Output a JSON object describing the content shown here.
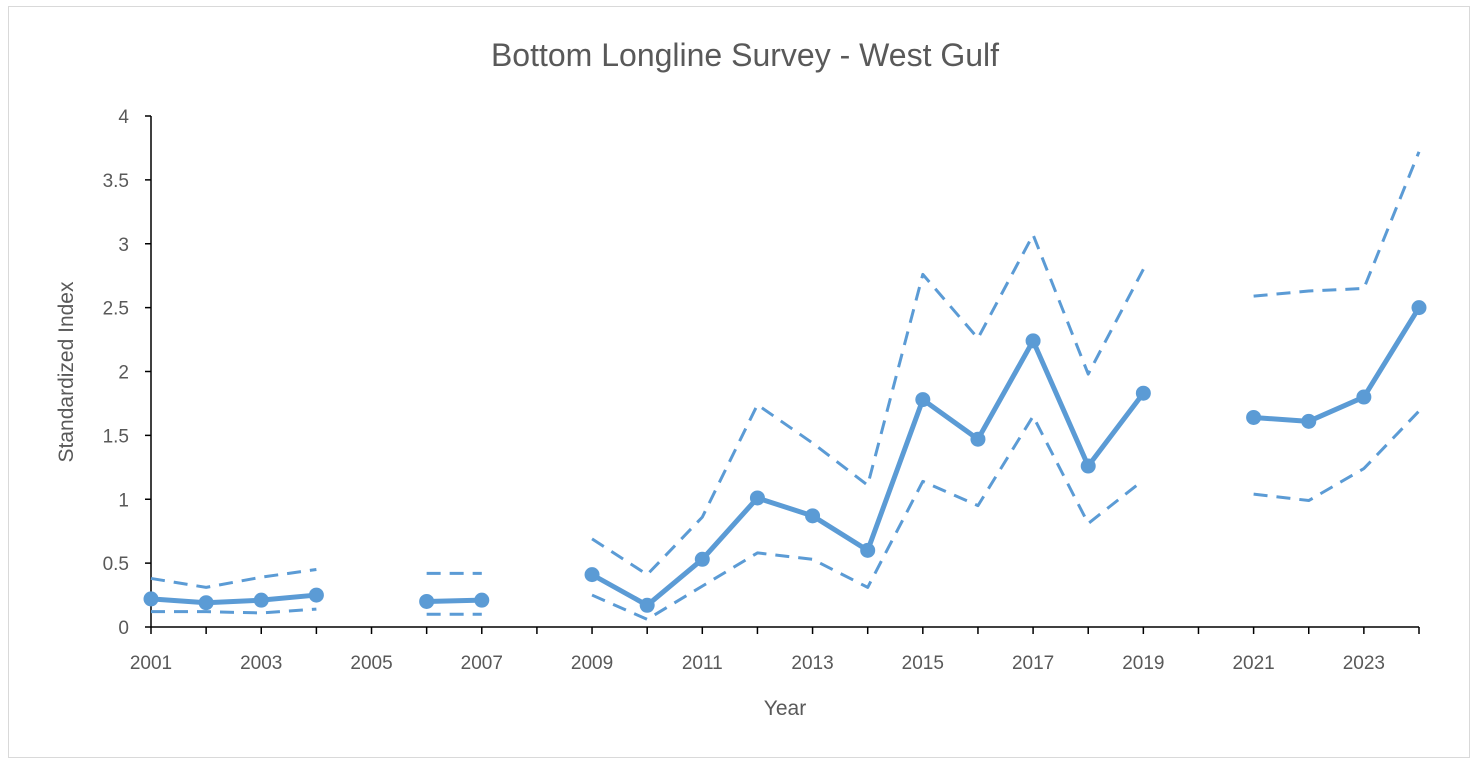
{
  "chart_data": {
    "type": "line",
    "title": "Bottom Longline Survey - West Gulf",
    "xlabel": "Year",
    "ylabel": "Standardized Index",
    "xlim": [
      2001,
      2024
    ],
    "ylim": [
      0,
      4
    ],
    "x_ticks": [
      2001,
      2003,
      2005,
      2007,
      2009,
      2011,
      2013,
      2015,
      2017,
      2019,
      2021,
      2023
    ],
    "x_tick_labels": [
      "2001",
      "2003",
      "2005",
      "2007",
      "2009",
      "2011",
      "2013",
      "2015",
      "2017",
      "2019",
      "2021",
      "2023"
    ],
    "y_ticks": [
      0,
      0.5,
      1,
      1.5,
      2,
      2.5,
      3,
      3.5,
      4
    ],
    "y_tick_labels": [
      "0",
      "0.5",
      "1",
      "1.5",
      "2",
      "2.5",
      "3",
      "3.5",
      "4"
    ],
    "grid": false,
    "legend": "none",
    "color": "#5b9bd5",
    "x": [
      2001,
      2002,
      2003,
      2004,
      2005,
      2006,
      2007,
      2008,
      2009,
      2010,
      2011,
      2012,
      2013,
      2014,
      2015,
      2016,
      2017,
      2018,
      2019,
      2020,
      2021,
      2022,
      2023,
      2024
    ],
    "series": [
      {
        "role": "index",
        "style": "solid-markers",
        "values": [
          0.22,
          0.19,
          0.21,
          0.25,
          null,
          0.2,
          0.21,
          null,
          0.41,
          0.17,
          0.53,
          1.01,
          0.87,
          0.6,
          1.78,
          1.47,
          2.24,
          1.26,
          1.83,
          null,
          1.64,
          1.61,
          1.8,
          2.5
        ]
      },
      {
        "role": "upper",
        "style": "dashed",
        "values": [
          0.38,
          0.31,
          0.39,
          0.45,
          null,
          0.42,
          0.42,
          null,
          0.69,
          0.41,
          0.86,
          1.74,
          1.44,
          1.11,
          2.76,
          2.26,
          3.07,
          1.98,
          2.8,
          null,
          2.59,
          2.63,
          2.65,
          3.72
        ]
      },
      {
        "role": "lower",
        "style": "dashed",
        "values": [
          0.12,
          0.12,
          0.11,
          0.14,
          null,
          0.1,
          0.1,
          null,
          0.25,
          0.06,
          0.32,
          0.58,
          0.53,
          0.31,
          1.14,
          0.95,
          1.65,
          0.81,
          1.15,
          null,
          1.04,
          0.99,
          1.24,
          1.69
        ]
      }
    ]
  }
}
